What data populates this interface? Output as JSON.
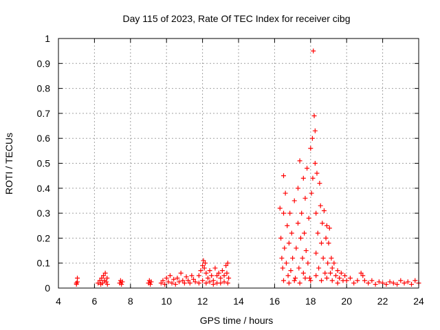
{
  "chart_data": {
    "type": "scatter",
    "title": "Day 115 of 2023, Rate Of TEC Index for receiver cibg",
    "xlabel": "GPS time / hours",
    "ylabel": "ROTI / TECUs",
    "xlim": [
      4,
      24
    ],
    "ylim": [
      0,
      1
    ],
    "x_ticks": [
      "4",
      "6",
      "8",
      "10",
      "12",
      "14",
      "16",
      "18",
      "20",
      "22",
      "24"
    ],
    "y_ticks": [
      "0",
      "0.1",
      "0.2",
      "0.3",
      "0.4",
      "0.5",
      "0.6",
      "0.7",
      "0.8",
      "0.9",
      "1"
    ],
    "grid": true,
    "marker": "plus",
    "colors": {
      "points": "#ff0000",
      "grid": "#a0a0a0",
      "frame": "#000000"
    },
    "series": [
      {
        "values": [
          [
            5.0,
            0.02
          ],
          [
            5.0,
            0.015
          ],
          [
            5.05,
            0.04
          ],
          [
            5.05,
            0.025
          ],
          [
            6.2,
            0.02
          ],
          [
            6.3,
            0.03
          ],
          [
            6.35,
            0.015
          ],
          [
            6.4,
            0.04
          ],
          [
            6.45,
            0.02
          ],
          [
            6.5,
            0.05
          ],
          [
            6.55,
            0.03
          ],
          [
            6.6,
            0.06
          ],
          [
            6.65,
            0.025
          ],
          [
            6.7,
            0.04
          ],
          [
            6.72,
            0.015
          ],
          [
            7.4,
            0.02
          ],
          [
            7.45,
            0.03
          ],
          [
            7.5,
            0.015
          ],
          [
            7.55,
            0.025
          ],
          [
            9.0,
            0.02
          ],
          [
            9.05,
            0.03
          ],
          [
            9.1,
            0.015
          ],
          [
            9.15,
            0.025
          ],
          [
            9.7,
            0.02
          ],
          [
            9.8,
            0.03
          ],
          [
            9.9,
            0.015
          ],
          [
            10.0,
            0.04
          ],
          [
            10.1,
            0.025
          ],
          [
            10.2,
            0.05
          ],
          [
            10.3,
            0.02
          ],
          [
            10.4,
            0.035
          ],
          [
            10.5,
            0.015
          ],
          [
            10.6,
            0.04
          ],
          [
            10.7,
            0.025
          ],
          [
            10.8,
            0.06
          ],
          [
            10.9,
            0.03
          ],
          [
            11.0,
            0.02
          ],
          [
            11.1,
            0.045
          ],
          [
            11.2,
            0.03
          ],
          [
            11.3,
            0.02
          ],
          [
            11.4,
            0.05
          ],
          [
            11.5,
            0.035
          ],
          [
            11.6,
            0.025
          ],
          [
            11.8,
            0.05
          ],
          [
            11.9,
            0.07
          ],
          [
            12.0,
            0.09
          ],
          [
            12.05,
            0.11
          ],
          [
            12.1,
            0.08
          ],
          [
            12.15,
            0.1
          ],
          [
            12.2,
            0.06
          ],
          [
            12.3,
            0.04
          ],
          [
            12.4,
            0.07
          ],
          [
            12.5,
            0.05
          ],
          [
            12.6,
            0.03
          ],
          [
            12.7,
            0.08
          ],
          [
            12.8,
            0.05
          ],
          [
            12.9,
            0.06
          ],
          [
            13.0,
            0.04
          ],
          [
            13.1,
            0.07
          ],
          [
            13.2,
            0.05
          ],
          [
            13.3,
            0.09
          ],
          [
            13.35,
            0.06
          ],
          [
            13.4,
            0.1
          ],
          [
            13.45,
            0.04
          ],
          [
            11.8,
            0.02
          ],
          [
            12.0,
            0.03
          ],
          [
            12.2,
            0.02
          ],
          [
            12.4,
            0.025
          ],
          [
            12.6,
            0.015
          ],
          [
            12.8,
            0.02
          ],
          [
            13.0,
            0.02
          ],
          [
            13.2,
            0.025
          ],
          [
            13.4,
            0.02
          ],
          [
            16.3,
            0.32
          ],
          [
            16.35,
            0.2
          ],
          [
            16.4,
            0.12
          ],
          [
            16.45,
            0.08
          ],
          [
            16.5,
            0.45
          ],
          [
            16.5,
            0.3
          ],
          [
            16.55,
            0.16
          ],
          [
            16.6,
            0.38
          ],
          [
            16.65,
            0.1
          ],
          [
            16.7,
            0.25
          ],
          [
            16.75,
            0.05
          ],
          [
            16.8,
            0.18
          ],
          [
            16.85,
            0.3
          ],
          [
            16.9,
            0.07
          ],
          [
            16.95,
            0.22
          ],
          [
            17.0,
            0.12
          ],
          [
            17.1,
            0.35
          ],
          [
            17.15,
            0.04
          ],
          [
            17.2,
            0.16
          ],
          [
            17.3,
            0.4
          ],
          [
            17.3,
            0.26
          ],
          [
            17.35,
            0.08
          ],
          [
            17.4,
            0.51
          ],
          [
            17.45,
            0.2
          ],
          [
            17.5,
            0.3
          ],
          [
            17.55,
            0.12
          ],
          [
            17.6,
            0.44
          ],
          [
            17.6,
            0.06
          ],
          [
            17.65,
            0.22
          ],
          [
            17.7,
            0.36
          ],
          [
            17.75,
            0.15
          ],
          [
            17.8,
            0.48
          ],
          [
            17.85,
            0.1
          ],
          [
            17.9,
            0.28
          ],
          [
            17.95,
            0.04
          ],
          [
            18.0,
            0.56
          ],
          [
            18.05,
            0.38
          ],
          [
            18.1,
            0.6
          ],
          [
            18.12,
            0.44
          ],
          [
            18.15,
            0.95
          ],
          [
            18.2,
            0.69
          ],
          [
            18.25,
            0.5
          ],
          [
            18.25,
            0.63
          ],
          [
            18.3,
            0.3
          ],
          [
            18.3,
            0.14
          ],
          [
            18.35,
            0.46
          ],
          [
            18.4,
            0.22
          ],
          [
            18.45,
            0.08
          ],
          [
            18.5,
            0.42
          ],
          [
            18.55,
            0.33
          ],
          [
            18.6,
            0.18
          ],
          [
            18.65,
            0.26
          ],
          [
            18.7,
            0.12
          ],
          [
            18.75,
            0.31
          ],
          [
            18.8,
            0.06
          ],
          [
            18.85,
            0.2
          ],
          [
            18.9,
            0.25
          ],
          [
            18.95,
            0.1
          ],
          [
            19.0,
            0.18
          ],
          [
            19.05,
            0.24
          ],
          [
            19.1,
            0.06
          ],
          [
            19.15,
            0.12
          ],
          [
            19.2,
            0.08
          ],
          [
            19.3,
            0.1
          ],
          [
            19.4,
            0.05
          ],
          [
            19.5,
            0.07
          ],
          [
            19.6,
            0.04
          ],
          [
            19.7,
            0.06
          ],
          [
            19.8,
            0.03
          ],
          [
            19.9,
            0.05
          ],
          [
            20.0,
            0.03
          ],
          [
            16.5,
            0.03
          ],
          [
            16.8,
            0.02
          ],
          [
            17.1,
            0.03
          ],
          [
            17.4,
            0.02
          ],
          [
            17.7,
            0.04
          ],
          [
            18.0,
            0.03
          ],
          [
            18.3,
            0.05
          ],
          [
            18.6,
            0.03
          ],
          [
            18.9,
            0.04
          ],
          [
            19.2,
            0.03
          ],
          [
            19.5,
            0.02
          ],
          [
            20.2,
            0.04
          ],
          [
            20.4,
            0.02
          ],
          [
            20.6,
            0.03
          ],
          [
            20.8,
            0.06
          ],
          [
            20.9,
            0.05
          ],
          [
            21.0,
            0.03
          ],
          [
            21.2,
            0.02
          ],
          [
            21.4,
            0.03
          ],
          [
            21.6,
            0.015
          ],
          [
            21.8,
            0.025
          ],
          [
            22.0,
            0.02
          ],
          [
            22.2,
            0.015
          ],
          [
            22.4,
            0.025
          ],
          [
            22.6,
            0.02
          ],
          [
            22.8,
            0.015
          ],
          [
            23.0,
            0.03
          ],
          [
            23.2,
            0.02
          ],
          [
            23.4,
            0.025
          ],
          [
            23.6,
            0.015
          ],
          [
            23.8,
            0.03
          ],
          [
            24.0,
            0.02
          ]
        ]
      }
    ]
  }
}
